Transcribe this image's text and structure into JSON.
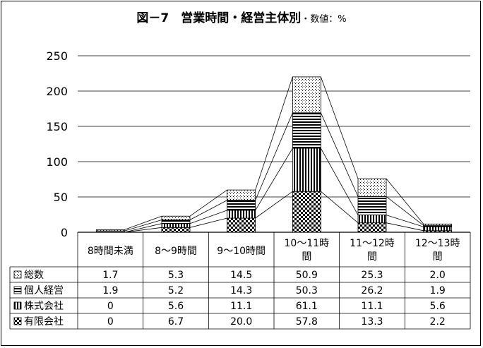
{
  "chart_data": {
    "type": "bar",
    "stacked": true,
    "title": "図－7　営業時間・経営主体別",
    "title_suffix": "・数値：%",
    "categories": [
      [
        "8時間未満"
      ],
      [
        "8～9時間"
      ],
      [
        "9～10時間"
      ],
      [
        "10～11時",
        "間"
      ],
      [
        "11～12時",
        "間"
      ],
      [
        "12～13時",
        "間"
      ]
    ],
    "series": [
      {
        "name": "有限会社",
        "pattern": "checker",
        "values": [
          0,
          6.7,
          20.0,
          57.8,
          13.3,
          2.2
        ]
      },
      {
        "name": "株式会社",
        "pattern": "vertical",
        "values": [
          0,
          5.6,
          11.1,
          61.1,
          11.1,
          5.6
        ]
      },
      {
        "name": "個人経営",
        "pattern": "horizontal",
        "values": [
          1.9,
          5.2,
          14.3,
          50.3,
          26.2,
          1.9
        ]
      },
      {
        "name": "総数",
        "pattern": "dots",
        "values": [
          1.7,
          5.3,
          14.5,
          50.9,
          25.3,
          2.0
        ]
      }
    ],
    "table_rows": [
      {
        "name": "総数",
        "pattern": "dots",
        "cells": [
          "1.7",
          "5.3",
          "14.5",
          "50.9",
          "25.3",
          "2.0"
        ]
      },
      {
        "name": "個人経営",
        "pattern": "horizontal",
        "cells": [
          "1.9",
          "5.2",
          "14.3",
          "50.3",
          "26.2",
          "1.9"
        ]
      },
      {
        "name": "株式会社",
        "pattern": "vertical",
        "cells": [
          "0",
          "5.6",
          "11.1",
          "61.1",
          "11.1",
          "5.6"
        ]
      },
      {
        "name": "有限会社",
        "pattern": "checker",
        "cells": [
          "0",
          "6.7",
          "20.0",
          "57.8",
          "13.3",
          "2.2"
        ]
      }
    ],
    "ylim": [
      0,
      250
    ],
    "yticks": [
      "0",
      "50",
      "100",
      "150",
      "200",
      "250"
    ],
    "grid": true,
    "series_lines": true,
    "legend": "data-table-left"
  }
}
